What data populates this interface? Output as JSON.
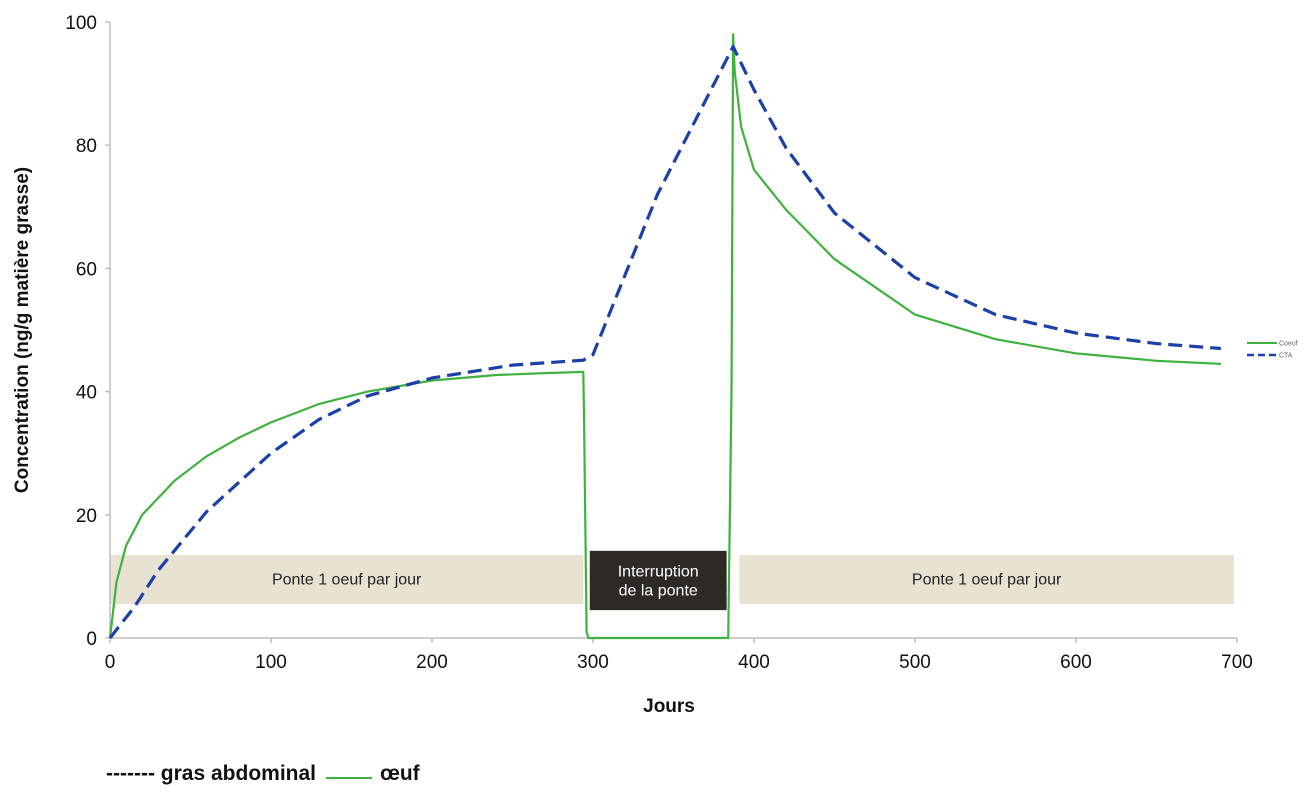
{
  "colors": {
    "egg": "#3fb13f",
    "fat": "#1d3fa8",
    "phase_bg": "#e8e2d2",
    "phase_dark": "#2b2a24",
    "axis": "#bdbdbd"
  },
  "chart_data": {
    "type": "line",
    "xlabel": "Jours",
    "ylabel": "Concentration (ng/g matière grasse)",
    "xlim": [
      0,
      700
    ],
    "ylim": [
      0,
      100
    ],
    "x_ticks": [
      "0",
      "100",
      "200",
      "300",
      "400",
      "500",
      "600",
      "700"
    ],
    "y_ticks": [
      "0",
      "20",
      "40",
      "60",
      "80",
      "100"
    ],
    "grid": false,
    "series": [
      {
        "name": "Coeuf",
        "style": "solid",
        "color": "#3fb13f",
        "points": [
          [
            0,
            0
          ],
          [
            4,
            9
          ],
          [
            10,
            15
          ],
          [
            20,
            20
          ],
          [
            40,
            25.5
          ],
          [
            60,
            29.5
          ],
          [
            80,
            32.5
          ],
          [
            100,
            35
          ],
          [
            130,
            38
          ],
          [
            160,
            40
          ],
          [
            200,
            41.8
          ],
          [
            240,
            42.7
          ],
          [
            270,
            43
          ],
          [
            294,
            43.2
          ],
          [
            294.5,
            35
          ],
          [
            296,
            1
          ],
          [
            297,
            0
          ],
          [
            384,
            0
          ],
          [
            386,
            40
          ],
          [
            387,
            98
          ],
          [
            388,
            92
          ],
          [
            392,
            83
          ],
          [
            400,
            76
          ],
          [
            420,
            69.5
          ],
          [
            450,
            61.5
          ],
          [
            500,
            52.5
          ],
          [
            550,
            48.5
          ],
          [
            600,
            46.2
          ],
          [
            650,
            45
          ],
          [
            690,
            44.5
          ]
        ]
      },
      {
        "name": "CTA",
        "style": "dashed",
        "color": "#1d3fa8",
        "points": [
          [
            0,
            0
          ],
          [
            15,
            5
          ],
          [
            30,
            11
          ],
          [
            60,
            20.5
          ],
          [
            100,
            30
          ],
          [
            130,
            35.5
          ],
          [
            160,
            39.3
          ],
          [
            200,
            42.2
          ],
          [
            250,
            44.3
          ],
          [
            294,
            45.1
          ],
          [
            300,
            46
          ],
          [
            340,
            72
          ],
          [
            387,
            96
          ],
          [
            400,
            89
          ],
          [
            420,
            79.5
          ],
          [
            450,
            69
          ],
          [
            500,
            58.5
          ],
          [
            550,
            52.5
          ],
          [
            600,
            49.5
          ],
          [
            650,
            47.8
          ],
          [
            690,
            47
          ]
        ]
      }
    ],
    "phases": [
      {
        "label": "Ponte 1 oeuf par jour",
        "start": 0,
        "end": 294,
        "dark": false
      },
      {
        "label": "Interruption de la ponte",
        "lines": [
          "Interruption",
          "de la ponte"
        ],
        "start": 298,
        "end": 383,
        "dark": true
      },
      {
        "label": "Ponte 1 oeuf par jour",
        "start": 391,
        "end": 698,
        "dark": false
      }
    ],
    "phase_band_y": [
      5.5,
      13.5
    ],
    "small_legend": [
      "Coeuf",
      "CTA"
    ],
    "bottom_legend": {
      "dashed_label": "------- gras abdominal",
      "solid_label": "œuf"
    }
  }
}
